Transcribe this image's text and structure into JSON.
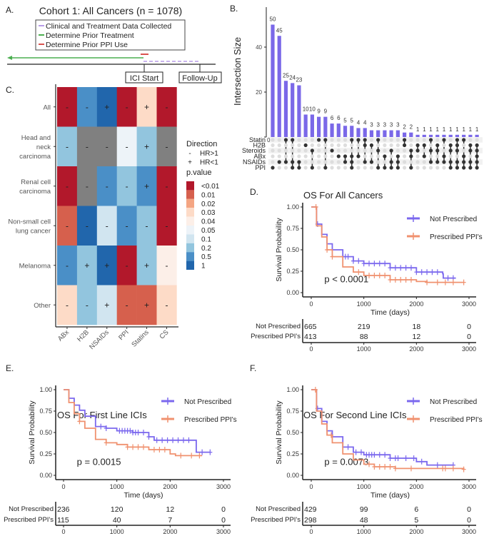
{
  "panel_labels": {
    "a": "A.",
    "b": "B.",
    "c": "C.",
    "d": "D.",
    "e": "E.",
    "f": "F."
  },
  "panel_a": {
    "title": "Cohort 1: All Cancers (n = 1078)",
    "legend": [
      {
        "label": "Clinical and Treatment Data Collected",
        "color": "#b89ce8"
      },
      {
        "label": "Determine Prior Treatment",
        "color": "#4caf50"
      },
      {
        "label": "Determine Prior PPI Use",
        "color": "#d9534f"
      }
    ],
    "ici_start": "ICI Start",
    "follow_up": "Follow-Up"
  },
  "chart_data": [
    {
      "type": "bar",
      "panel": "B",
      "ylabel": "Intersection Size",
      "yticks": [
        0,
        20,
        40
      ],
      "ylim": [
        0,
        55
      ],
      "bar_color": "#7a68e8",
      "sets": [
        "Statin",
        "H2B",
        "Steroids",
        "ABx",
        "NSAIDs",
        "PPI"
      ],
      "values": [
        50,
        45,
        25,
        24,
        23,
        10,
        10,
        9,
        9,
        6,
        6,
        5,
        5,
        4,
        4,
        3,
        3,
        3,
        3,
        3,
        2,
        2,
        1,
        1,
        1,
        1,
        1,
        1,
        1,
        1,
        1,
        1
      ],
      "value_labels": [
        "50",
        "45",
        "25",
        "24",
        "23",
        "10",
        "10",
        "9",
        "9",
        "6",
        "6",
        "5",
        "5",
        "4",
        "4",
        "3",
        "3",
        "3",
        "3",
        "3",
        "2",
        "2",
        "1",
        "1",
        "1",
        "1",
        "1",
        "1",
        "1",
        "1",
        "1",
        "1"
      ],
      "memberships": [
        [
          "PPI"
        ],
        [
          "NSAIDs"
        ],
        [
          "Statin",
          "NSAIDs"
        ],
        [
          "Statin",
          "NSAIDs",
          "PPI"
        ],
        [
          "NSAIDs",
          "PPI"
        ],
        [
          "H2B"
        ],
        [
          "Steroids",
          "PPI"
        ],
        [
          "Statin"
        ],
        [
          "Statin",
          "PPI"
        ],
        [
          "Steroids"
        ],
        [
          "ABx"
        ],
        [
          "ABx",
          "NSAIDs"
        ],
        [
          "Statin",
          "ABx",
          "NSAIDs",
          "PPI"
        ],
        [
          "Statin",
          "ABx"
        ],
        [
          "Statin",
          "H2B",
          "NSAIDs"
        ],
        [
          "H2B",
          "NSAIDs"
        ],
        [
          "Statin",
          "Steroids",
          "PPI"
        ],
        [
          "ABx",
          "PPI"
        ],
        [
          "Steroids",
          "NSAIDs",
          "PPI"
        ],
        [
          "ABx",
          "NSAIDs",
          "PPI"
        ],
        [
          "Statin",
          "H2B"
        ],
        [
          "Steroids",
          "ABx",
          "PPI"
        ],
        [
          "H2B",
          "Steroids"
        ],
        [
          "H2B",
          "ABx"
        ],
        [
          "Statin",
          "Steroids",
          "NSAIDs"
        ],
        [
          "H2B",
          "Steroids",
          "NSAIDs"
        ],
        [
          "Statin",
          "ABx",
          "NSAIDs"
        ],
        [
          "H2B",
          "Steroids",
          "NSAIDs",
          "PPI"
        ],
        [
          "Statin",
          "H2B",
          "Steroids",
          "NSAIDs",
          "PPI"
        ],
        [
          "Statin",
          "ABx",
          "NSAIDs",
          "PPI"
        ],
        [
          "H2B",
          "Steroids",
          "NSAIDs",
          "PPI"
        ],
        [
          "H2B",
          "Steroids",
          "ABx",
          "NSAIDs",
          "PPI"
        ]
      ]
    },
    {
      "type": "heatmap",
      "panel": "C",
      "columns": [
        "ABx",
        "H2B",
        "NSAIDs",
        "PPI",
        "Statins",
        "CS"
      ],
      "rows": [
        "All",
        "Head and\nneck\ncarcinoma",
        "Renal cell\ncarcinoma",
        "Non-small cell\nlung cancer",
        "Melanoma",
        "Other"
      ],
      "pvalue_category": [
        [
          "<0.01",
          "0.5",
          "1",
          "<0.01",
          "0.03",
          "<0.01"
        ],
        [
          "0.2",
          "NA",
          "NA",
          "0.05",
          "0.2",
          "NA"
        ],
        [
          "<0.01",
          "NA",
          "0.5",
          "0.2",
          "0.5",
          "<0.01"
        ],
        [
          "0.01",
          "1",
          "0.1",
          "0.5",
          "0.2",
          "<0.01"
        ],
        [
          "0.5",
          "0.2",
          "1",
          "<0.01",
          "0.2",
          "0.04"
        ],
        [
          "0.03",
          "0.2",
          "0.1",
          "0.01",
          "0.01",
          "0.03"
        ]
      ],
      "direction": [
        [
          "-",
          "-",
          "+",
          "-",
          "+",
          "-"
        ],
        [
          "-",
          "-",
          "-",
          "-",
          "+",
          "-"
        ],
        [
          "-",
          "-",
          "-",
          "-",
          "+",
          "-"
        ],
        [
          "-",
          "-",
          "-",
          "-",
          "-",
          "-"
        ],
        [
          "-",
          "+",
          "+",
          "-",
          "+",
          "-"
        ],
        [
          "-",
          "-",
          "+",
          "-",
          "+",
          "-"
        ]
      ],
      "legend_direction_title": "Direction",
      "legend_direction": [
        {
          "symbol": "-",
          "label": "HR>1"
        },
        {
          "symbol": "+",
          "label": "HR<1"
        }
      ],
      "legend_pvalue_title": "p.value",
      "legend_pvalue": [
        {
          "label": "<0.01",
          "color": "#b2182b"
        },
        {
          "label": "0.01",
          "color": "#d6604d"
        },
        {
          "label": "0.02",
          "color": "#f4a582"
        },
        {
          "label": "0.03",
          "color": "#fddbc7"
        },
        {
          "label": "0.04",
          "color": "#fcefe8"
        },
        {
          "label": "0.05",
          "color": "#edf3f8"
        },
        {
          "label": "0.1",
          "color": "#d1e5f0"
        },
        {
          "label": "0.2",
          "color": "#92c5de"
        },
        {
          "label": "0.5",
          "color": "#4a8fc7"
        },
        {
          "label": "1",
          "color": "#2166ac"
        }
      ],
      "na_color": "#808080"
    },
    {
      "type": "line",
      "panel": "D",
      "title": "OS For All Cancers",
      "xlabel": "Time (days)",
      "ylabel": "Survival Probability",
      "xlim": [
        0,
        3000
      ],
      "ylim": [
        0,
        1
      ],
      "xticks": [
        0,
        1000,
        2000,
        3000
      ],
      "yticks": [
        "0.00",
        "0.25",
        "0.50",
        "0.75",
        "1.00"
      ],
      "pvalue": "p < 0.0001",
      "series": [
        {
          "name": "Not Prescribed",
          "color": "#7b68ee",
          "x": [
            0,
            100,
            200,
            300,
            400,
            600,
            800,
            1000,
            1500,
            2000,
            2500,
            2510,
            2750
          ],
          "y": [
            1,
            0.8,
            0.68,
            0.57,
            0.5,
            0.42,
            0.37,
            0.34,
            0.29,
            0.24,
            0.22,
            0.17,
            0.17
          ],
          "censor": [
            120,
            650,
            700,
            800,
            900,
            1000,
            1100,
            1200,
            1300,
            1400,
            1500,
            1600,
            1700,
            1800,
            1900,
            2000,
            2100,
            2200,
            2300,
            2400,
            2600,
            2700
          ],
          "at_risk": [
            "665",
            "219",
            "18",
            "0"
          ]
        },
        {
          "name": "Prescribed PPI's",
          "color": "#f0916f",
          "x": [
            0,
            100,
            200,
            300,
            400,
            600,
            800,
            1000,
            1500,
            2000,
            2200,
            2900
          ],
          "y": [
            1,
            0.78,
            0.65,
            0.5,
            0.42,
            0.3,
            0.24,
            0.2,
            0.15,
            0.13,
            0.12,
            0.12
          ],
          "censor": [
            90,
            300,
            400,
            900,
            1100,
            1200,
            1300,
            1400,
            1500,
            1600,
            1700,
            1800,
            1900,
            2200,
            2400,
            2550,
            2700,
            2900
          ],
          "at_risk": [
            "413",
            "88",
            "12",
            "0"
          ]
        }
      ]
    },
    {
      "type": "line",
      "panel": "E",
      "title": "OS For First Line ICIs",
      "xlabel": "Time (days)",
      "ylabel": "Survival Probability",
      "xlim": [
        0,
        3000
      ],
      "ylim": [
        0,
        1
      ],
      "xticks": [
        0,
        1000,
        2000,
        3000
      ],
      "yticks": [
        "0.00",
        "0.25",
        "0.50",
        "0.75",
        "1.00"
      ],
      "pvalue": "p = 0.0015",
      "series": [
        {
          "name": "Not Prescribed",
          "color": "#7b68ee",
          "x": [
            0,
            100,
            200,
            300,
            400,
            600,
            800,
            1000,
            1300,
            1600,
            1700,
            2480,
            2490,
            2750
          ],
          "y": [
            1,
            0.9,
            0.82,
            0.76,
            0.69,
            0.57,
            0.55,
            0.52,
            0.5,
            0.45,
            0.41,
            0.41,
            0.27,
            0.27
          ],
          "censor": [
            700,
            800,
            1050,
            1100,
            1150,
            1200,
            1250,
            1300,
            1350,
            1400,
            1500,
            1600,
            1750,
            1850,
            1950,
            2050,
            2150,
            2250,
            2350,
            2600,
            2750
          ],
          "at_risk": [
            "236",
            "120",
            "12",
            "0"
          ]
        },
        {
          "name": "Prescribed PPI's",
          "color": "#f0916f",
          "x": [
            0,
            100,
            200,
            300,
            400,
            600,
            800,
            1000,
            1200,
            1600,
            2000,
            2100,
            2600
          ],
          "y": [
            1,
            0.85,
            0.72,
            0.63,
            0.55,
            0.42,
            0.38,
            0.36,
            0.33,
            0.3,
            0.25,
            0.23,
            0.23
          ],
          "censor": [
            300,
            800,
            1200,
            1300,
            1400,
            1500,
            1700,
            1800,
            1900,
            2200,
            2400,
            2550
          ],
          "at_risk": [
            "115",
            "40",
            "7",
            "0"
          ]
        }
      ]
    },
    {
      "type": "line",
      "panel": "F",
      "title": "OS For Second Line ICIs",
      "xlabel": "Time (days)",
      "ylabel": "Survival Probability",
      "xlim": [
        0,
        3000
      ],
      "ylim": [
        0,
        1
      ],
      "xticks": [
        0,
        1000,
        2000,
        3000
      ],
      "yticks": [
        "0.00",
        "0.25",
        "0.50",
        "0.75",
        "1.00"
      ],
      "pvalue": "p = 0.0073",
      "series": [
        {
          "name": "Not Prescribed",
          "color": "#7b68ee",
          "x": [
            0,
            100,
            200,
            300,
            400,
            600,
            800,
            1000,
            1500,
            2000,
            2200,
            2700
          ],
          "y": [
            1,
            0.78,
            0.63,
            0.52,
            0.45,
            0.33,
            0.27,
            0.24,
            0.2,
            0.16,
            0.12,
            0.12
          ],
          "censor": [
            120,
            700,
            850,
            950,
            1050,
            1100,
            1150,
            1200,
            1300,
            1400,
            1500,
            1600,
            1650,
            1800,
            1950,
            2100,
            2400,
            2700
          ],
          "at_risk": [
            "429",
            "99",
            "6",
            "0"
          ]
        },
        {
          "name": "Prescribed PPI's",
          "color": "#f0916f",
          "x": [
            0,
            100,
            200,
            300,
            400,
            600,
            800,
            1000,
            1200,
            1600,
            2900
          ],
          "y": [
            1,
            0.75,
            0.6,
            0.47,
            0.38,
            0.25,
            0.18,
            0.13,
            0.1,
            0.08,
            0.07
          ],
          "censor": [
            80,
            380,
            1100,
            1200,
            1300,
            1400,
            1500,
            1600,
            1900,
            2500,
            2550,
            2700,
            2900
          ],
          "at_risk": [
            "298",
            "48",
            "5",
            "0"
          ]
        }
      ]
    }
  ]
}
